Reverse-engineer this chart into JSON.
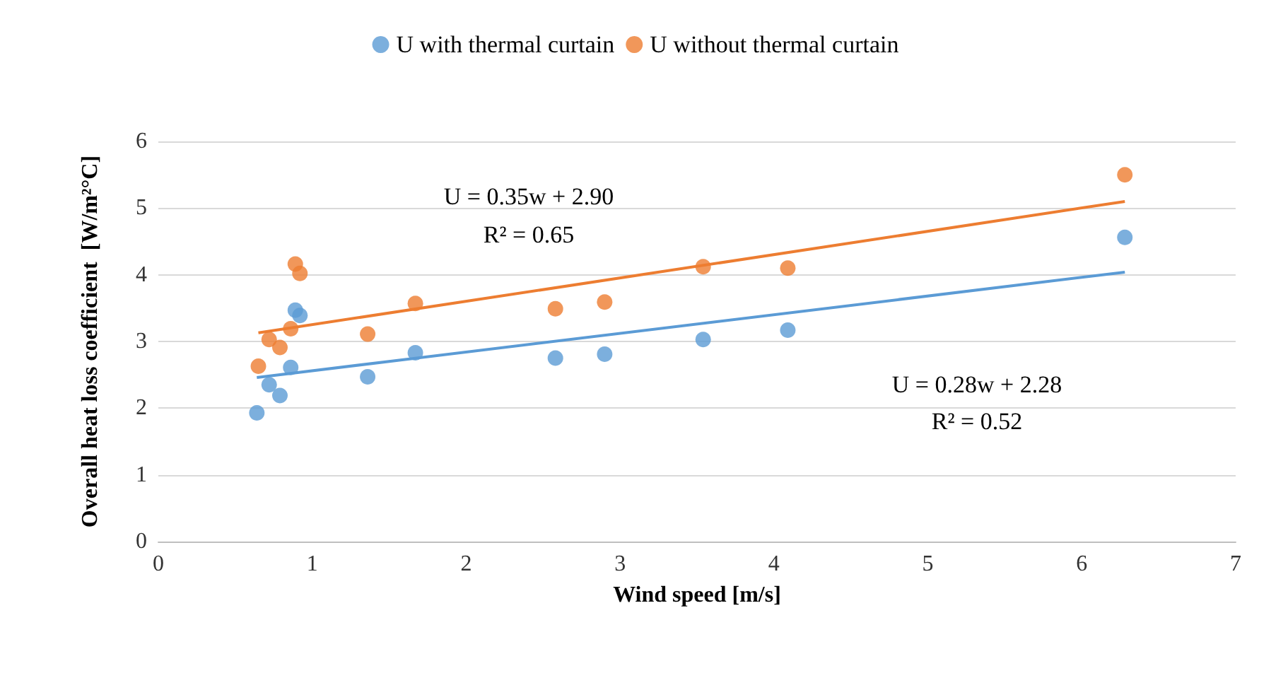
{
  "chart_data": {
    "type": "scatter",
    "xlabel": "Wind speed [m/s]",
    "ylabel": "Overall heat loss coefficient  [W/m²°C]",
    "xlim": [
      0,
      7
    ],
    "xticks": [
      0,
      1,
      2,
      3,
      4,
      5,
      6,
      7
    ],
    "ylim": [
      0,
      6
    ],
    "yticks": [
      0,
      1,
      2,
      3,
      4,
      5,
      6
    ],
    "grid": "y",
    "legend": "top",
    "marker": "circle",
    "series": [
      {
        "name": "U with thermal curtain",
        "color": "#5b9bd5",
        "x": [
          0.64,
          0.72,
          0.79,
          0.86,
          0.89,
          0.92,
          1.36,
          1.67,
          2.58,
          2.9,
          3.54,
          4.09,
          6.28
        ],
        "values": [
          1.93,
          2.35,
          2.19,
          2.61,
          3.47,
          3.39,
          2.47,
          2.83,
          2.75,
          2.81,
          3.03,
          3.17,
          4.56
        ]
      },
      {
        "name": "U without thermal curtain",
        "color": "#ed7d31",
        "x": [
          0.65,
          0.72,
          0.79,
          0.86,
          0.89,
          0.92,
          1.36,
          1.67,
          2.58,
          2.9,
          3.54,
          4.09,
          6.28
        ],
        "values": [
          2.63,
          3.03,
          2.91,
          3.19,
          4.16,
          4.02,
          3.11,
          3.57,
          3.49,
          3.59,
          4.12,
          4.1,
          5.5
        ]
      },
      {
        "type": "line",
        "color": "#5b9bd5",
        "x": [
          0.64,
          6.28
        ],
        "values": [
          2.46,
          4.04
        ],
        "marker": "none"
      },
      {
        "type": "line",
        "color": "#ed7d31",
        "x": [
          0.65,
          6.28
        ],
        "values": [
          3.13,
          5.1
        ],
        "marker": "none"
      }
    ],
    "annotations": [
      "U = 0.35w + 2.90",
      "R² = 0.65",
      "U = 0.28w + 2.28",
      "R² = 0.52"
    ]
  }
}
